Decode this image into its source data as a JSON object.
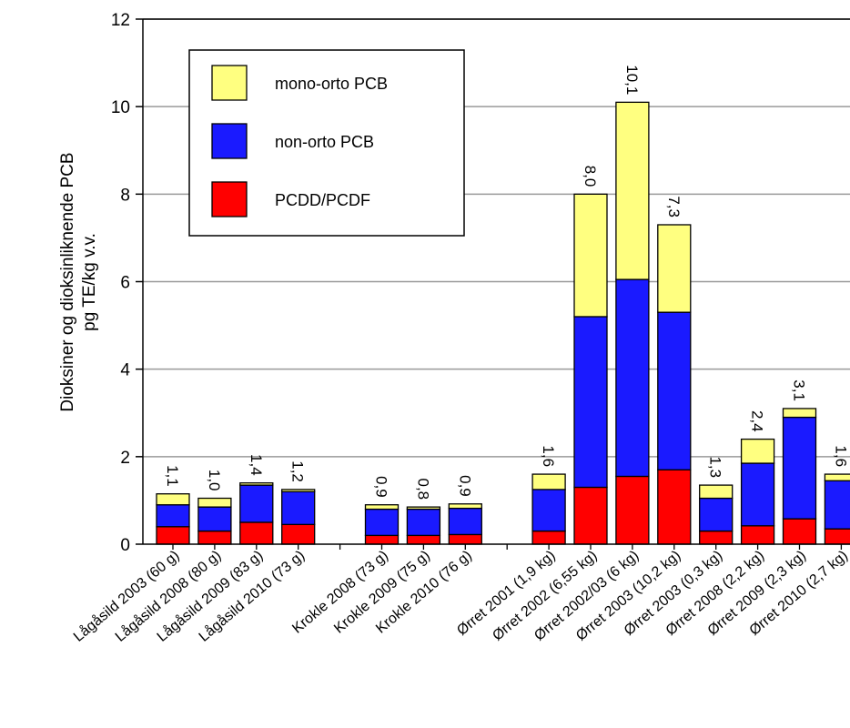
{
  "chart_data": {
    "type": "bar",
    "stacked": true,
    "ylabel_line1": "Dioksiner og dioksinliknende PCB",
    "ylabel_line2": "pg TE/kg v.v.",
    "ylim": [
      0,
      12
    ],
    "yticks": [
      0,
      2,
      4,
      6,
      8,
      10,
      12
    ],
    "grid": true,
    "legend_position": "top-left",
    "categories": [
      "Lågåsild 2003 (60 g)",
      "Lågåsild 2008 (80 g)",
      "Lågåsild 2009 (83 g)",
      "Lågåsild 2010 (73 g)",
      "",
      "Krokle 2008 (73 g)",
      "Krokle 2009 (75 g)",
      "Krokle 2010 (76 g)",
      "",
      "Ørret 2001 (1,9 kg)",
      "Ørret 2002 (6,55 kg)",
      "Ørret 2002/03 (6 kg)",
      "Ørret 2003 (10,2 kg)",
      "Ørret 2003 (0,3 kg)",
      "Ørret 2008 (2,2 kg)",
      "Ørret 2009 (2,3 kg)",
      "Ørret 2010 (2,7 kg)"
    ],
    "totals": [
      "1,1",
      "1,0",
      "1,4",
      "1,2",
      "",
      "0,9",
      "0,8",
      "0,9",
      "",
      "1,6",
      "8,0",
      "10,1",
      "7,3",
      "1,3",
      "2,4",
      "3,1",
      "1,6"
    ],
    "series": [
      {
        "name": "PCDD/PCDF",
        "color": "#ff0000",
        "values": [
          0.4,
          0.3,
          0.5,
          0.45,
          null,
          0.2,
          0.2,
          0.22,
          null,
          0.3,
          1.3,
          1.55,
          1.7,
          0.3,
          0.42,
          0.58,
          0.35
        ]
      },
      {
        "name": "non-orto PCB",
        "color": "#1a1aff",
        "values": [
          0.5,
          0.55,
          0.85,
          0.75,
          null,
          0.6,
          0.6,
          0.6,
          null,
          0.95,
          3.9,
          4.5,
          3.6,
          0.75,
          1.43,
          2.32,
          1.1
        ]
      },
      {
        "name": "mono-orto PCB",
        "color": "#ffff80",
        "values": [
          0.25,
          0.2,
          0.05,
          0.05,
          null,
          0.1,
          0.05,
          0.1,
          null,
          0.35,
          2.8,
          4.05,
          2.0,
          0.3,
          0.55,
          0.2,
          0.15
        ]
      }
    ]
  }
}
